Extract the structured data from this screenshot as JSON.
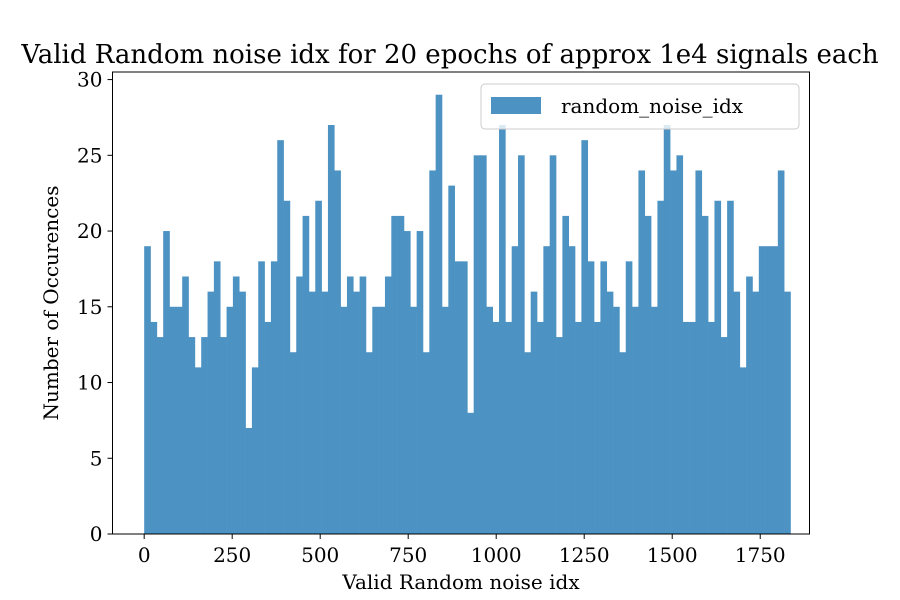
{
  "chart_data": {
    "type": "bar",
    "title": "Valid Random noise idx for 20 epochs of approx 1e4 signals each",
    "xlabel": "Valid Random noise idx",
    "ylabel": "Number of Occurences",
    "legend": {
      "label": "random_noise_idx",
      "placement": "top-right"
    },
    "color": "#4c92c3",
    "xlim": [
      -90,
      1890
    ],
    "ylim": [
      0,
      30.5
    ],
    "xticks": [
      0,
      250,
      500,
      750,
      1000,
      1250,
      1500,
      1750
    ],
    "yticks": [
      0,
      5,
      10,
      15,
      20,
      25,
      30
    ],
    "grid": false,
    "bin_start": 0,
    "bin_width": 18,
    "counts": [
      19,
      14,
      13,
      20,
      15,
      15,
      17,
      13,
      11,
      13,
      16,
      18,
      13,
      15,
      17,
      16,
      7,
      11,
      18,
      14,
      18,
      26,
      22,
      12,
      17,
      21,
      16,
      22,
      16,
      27,
      24,
      15,
      17,
      16,
      17,
      12,
      15,
      15,
      17,
      21,
      21,
      20,
      15,
      20,
      12,
      24,
      29,
      15,
      23,
      18,
      18,
      8,
      25,
      25,
      15,
      14,
      27,
      14,
      19,
      25,
      12,
      16,
      14,
      19,
      25,
      13,
      21,
      19,
      14,
      26,
      18,
      14,
      18,
      16,
      15,
      12,
      18,
      15,
      24,
      21,
      15,
      22,
      27,
      24,
      25,
      14,
      14,
      24,
      21,
      14,
      22,
      13,
      22,
      16,
      11,
      17,
      16,
      19,
      19,
      19,
      24,
      16
    ]
  }
}
